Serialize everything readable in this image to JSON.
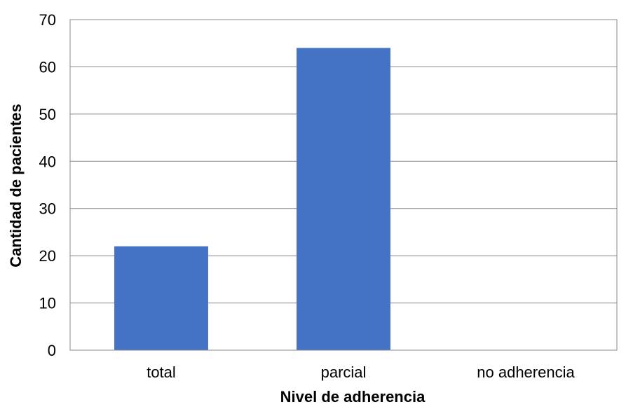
{
  "chart_data": {
    "type": "bar",
    "title": "",
    "categories": [
      "total",
      "parcial",
      "no adherencia"
    ],
    "values": [
      22,
      64,
      0
    ],
    "xlabel": "Nivel de adherencia",
    "ylabel": "Cantidad de pacientes",
    "ylim": [
      0,
      70
    ],
    "yticks": [
      0,
      10,
      20,
      30,
      40,
      50,
      60,
      70
    ],
    "grid": true,
    "legend": "none",
    "bar_color": "#4472C4"
  }
}
